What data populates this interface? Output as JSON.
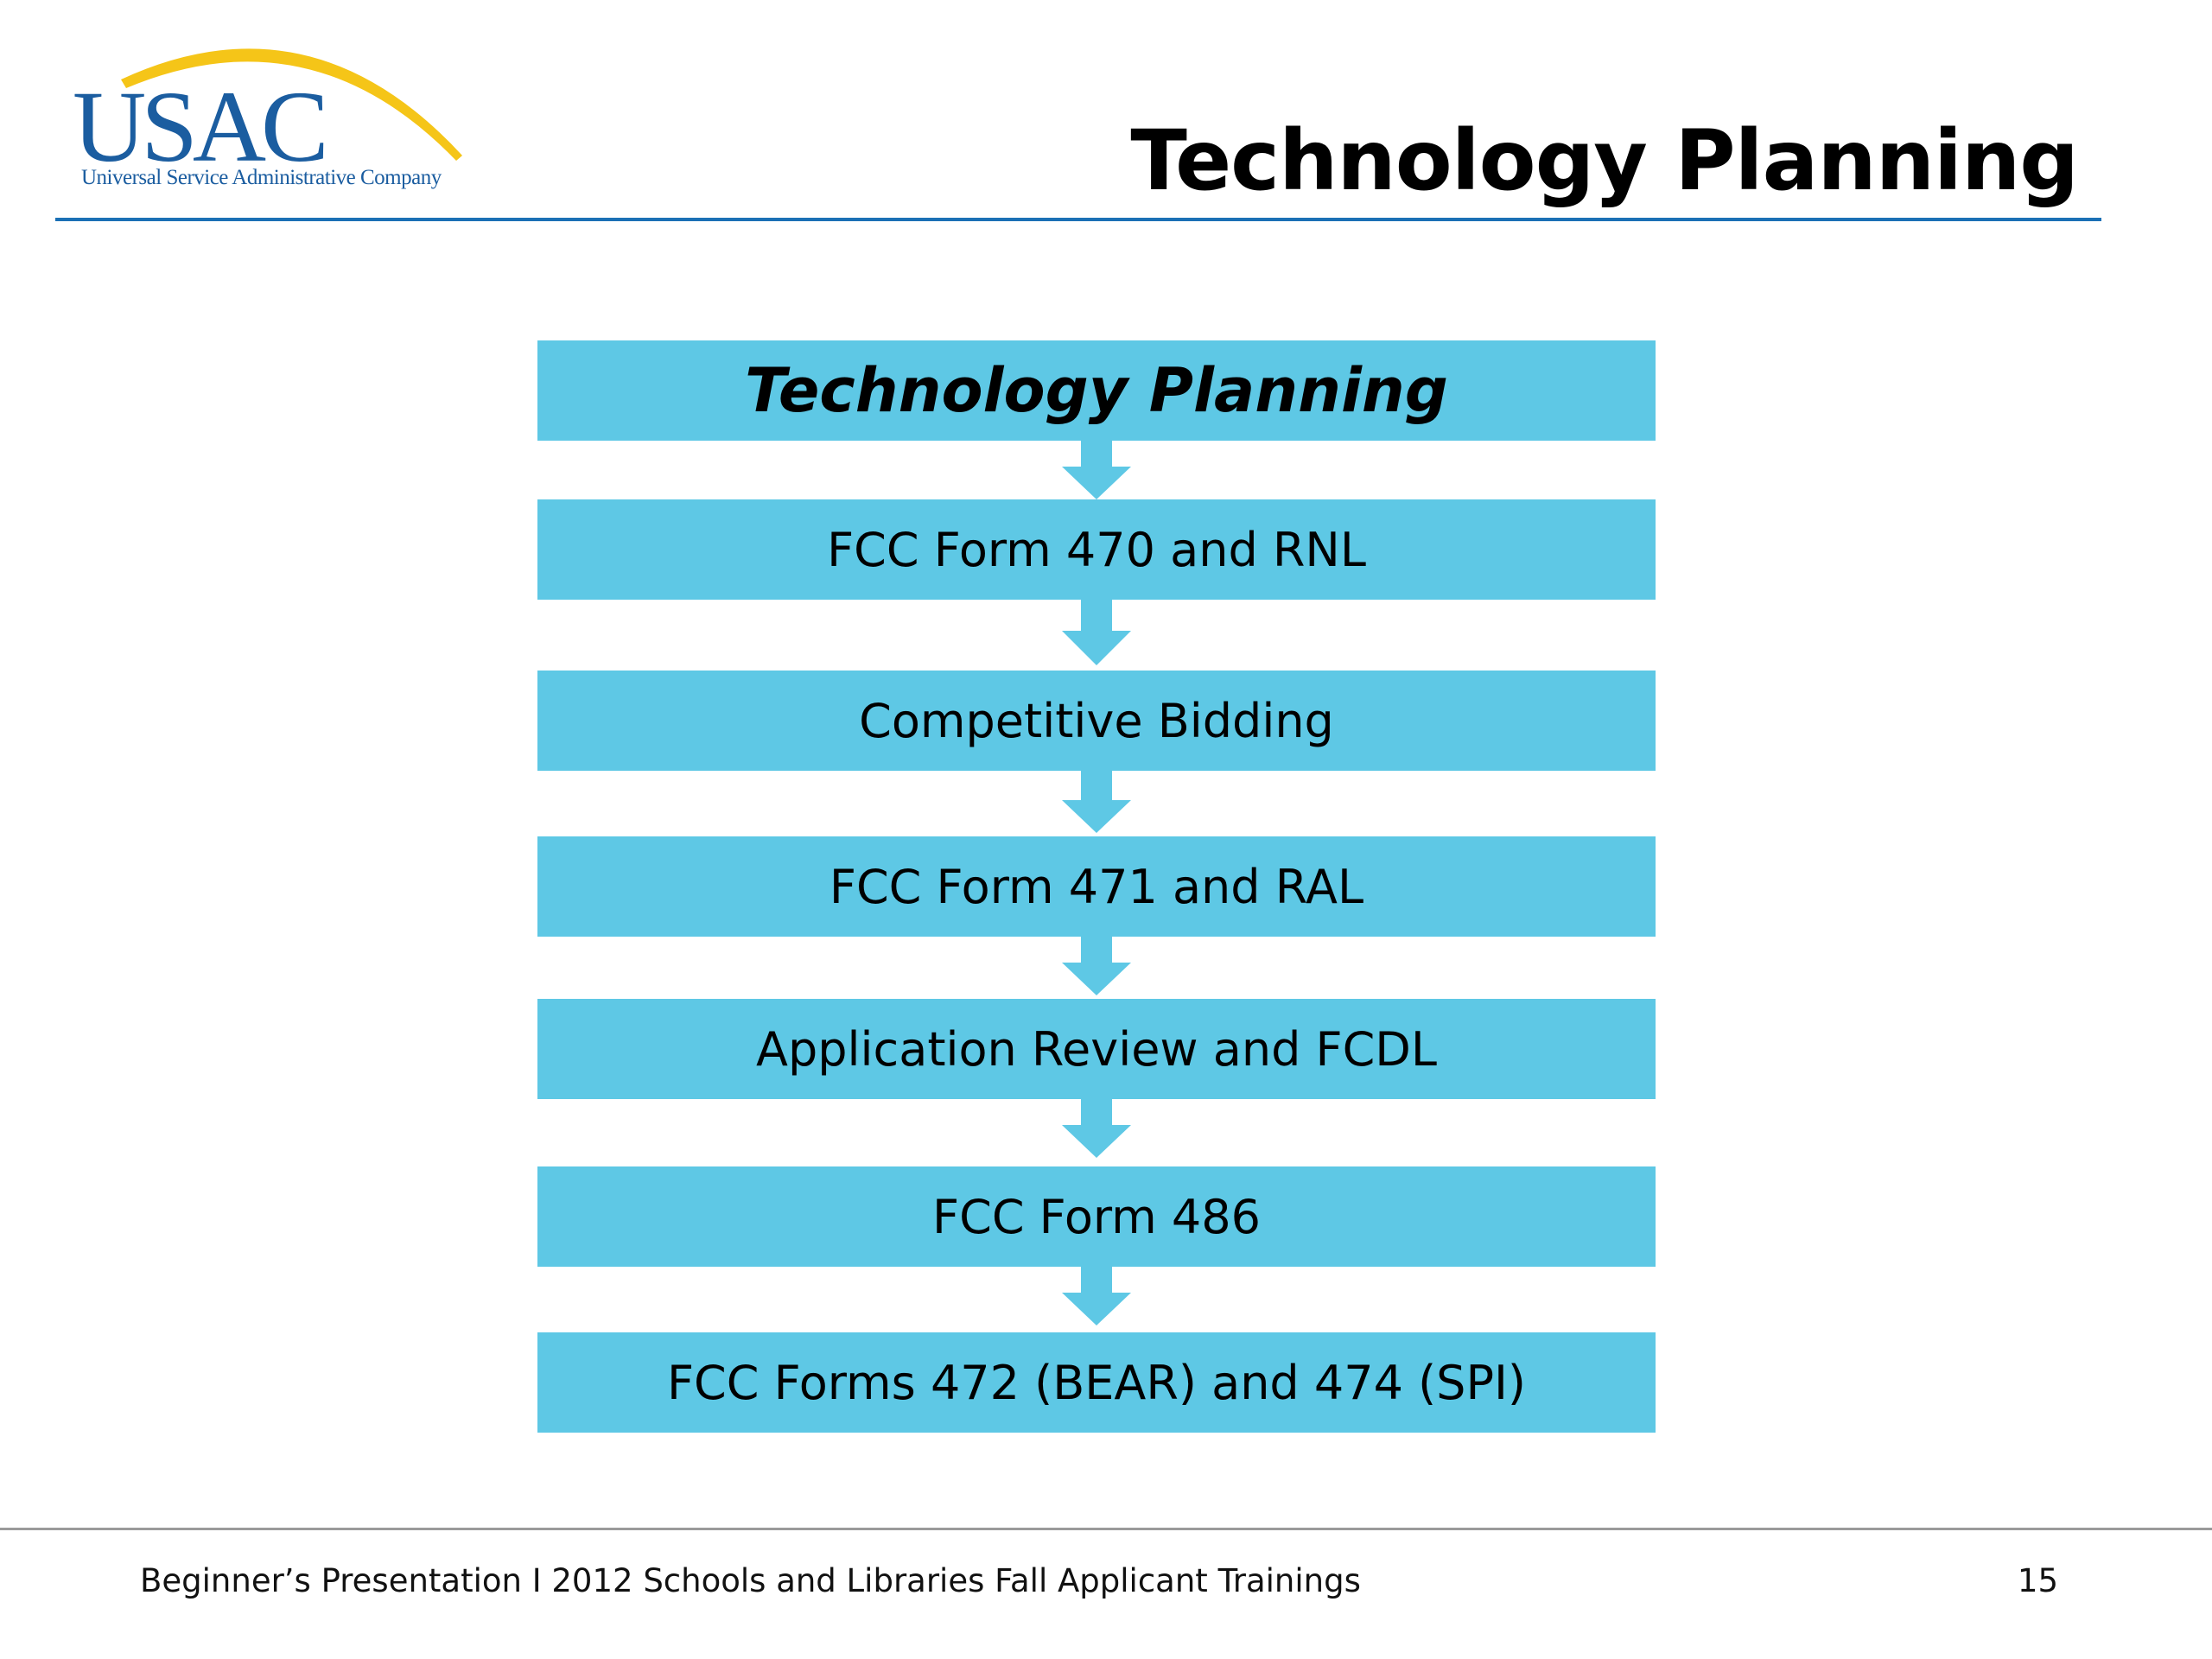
{
  "header": {
    "logo": {
      "text": "USAC",
      "subtitle": "Universal Service Administrative Company",
      "primary_color": "#1b5da0",
      "arc_color": "#f5c518"
    },
    "title": "Technology Planning",
    "rule_color": "#1b70b5"
  },
  "flowchart": {
    "box_color": "#5ec8e5",
    "steps": [
      "Technology Planning",
      "FCC Form 470 and RNL",
      "Competitive Bidding",
      "FCC Form 471 and RAL",
      "Application Review and FCDL",
      "FCC Form 486",
      "FCC Forms 472 (BEAR) and 474 (SPI)"
    ]
  },
  "footer": {
    "text": "Beginner’s Presentation  I  2012 Schools and Libraries  Fall Applicant Trainings",
    "page_number": "15"
  }
}
